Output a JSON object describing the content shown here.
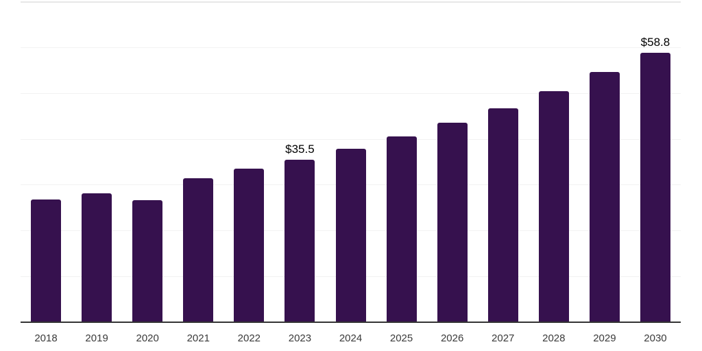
{
  "chart_data": {
    "type": "bar",
    "title": "",
    "xlabel": "",
    "ylabel": "",
    "categories": [
      "2018",
      "2019",
      "2020",
      "2021",
      "2022",
      "2023",
      "2024",
      "2025",
      "2026",
      "2027",
      "2028",
      "2029",
      "2030"
    ],
    "values": [
      26.8,
      28.1,
      26.6,
      31.4,
      33.5,
      35.5,
      37.9,
      40.5,
      43.5,
      46.7,
      50.4,
      54.6,
      58.8
    ],
    "displayed_data_labels": [
      {
        "category": "2023",
        "index": 5,
        "text": "$35.5"
      },
      {
        "category": "2030",
        "index": 12,
        "text": "$58.8"
      }
    ],
    "value_prefix": "$",
    "ylim": [
      0,
      70
    ],
    "grid_step": 10,
    "grid": true,
    "y_tick_labels_visible": false,
    "legend_position": "none"
  },
  "colors": {
    "background": "#ffffff",
    "bar": "#36114e",
    "gridline": "#f2f2f2",
    "top_border": "#e7e7e7",
    "axis_line": "#333333",
    "tick_label": "#3a3a3a",
    "data_label": "#000000"
  }
}
